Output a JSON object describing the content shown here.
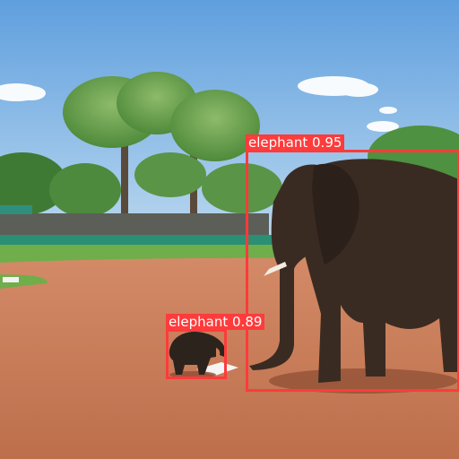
{
  "detections": [
    {
      "class_name": "elephant",
      "score": "0.95",
      "text": "elephant 0.95"
    },
    {
      "class_name": "elephant",
      "score": "0.89",
      "text": "elephant 0.89"
    }
  ],
  "colors": {
    "box": "#ff3b3b",
    "sky": "#9fc7ea",
    "infield_dirt": "#c97955",
    "grass": "#6fae4a"
  }
}
